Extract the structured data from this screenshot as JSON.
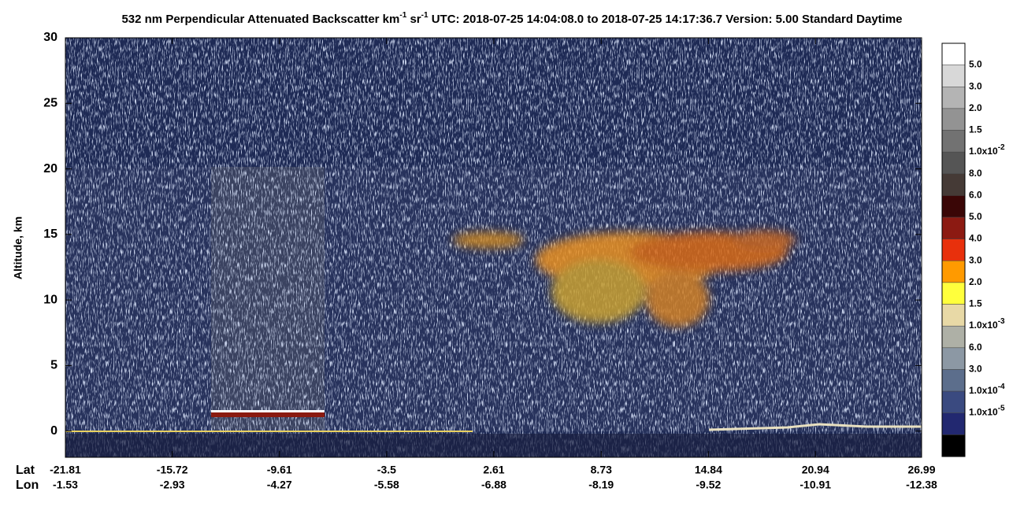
{
  "chart_data": {
    "type": "heatmap",
    "title_parts": [
      {
        "text": "532 nm Perpendicular Attenuated Backscatter km"
      },
      {
        "sup": "-1"
      },
      {
        "text": " sr"
      },
      {
        "sup": "-1"
      },
      {
        "text": "  UTC: 2018-07-25 14:04:08.0 to 2018-07-25 14:17:36.7  Version: 5.00 Standard Daytime"
      }
    ],
    "y_label": "Altitude, km",
    "ylim": [
      -2,
      30
    ],
    "yticks": [
      0,
      5,
      10,
      15,
      20,
      25,
      30
    ],
    "x_row_labels": [
      "Lat",
      "Lon"
    ],
    "xlim": [
      -21.81,
      26.99
    ],
    "lat": [
      -21.81,
      -15.72,
      -9.61,
      -3.5,
      2.61,
      8.73,
      14.84,
      20.94,
      26.99
    ],
    "lon": [
      -1.53,
      -2.93,
      -4.27,
      -5.58,
      -6.88,
      -8.19,
      -9.52,
      -10.91,
      -12.38
    ],
    "colorbar": {
      "labels": [
        {
          "text": "5.0"
        },
        {
          "text": "3.0"
        },
        {
          "text": "2.0"
        },
        {
          "text": "1.5"
        },
        {
          "text": "1.0x10",
          "sup": "-2"
        },
        {
          "text": "8.0"
        },
        {
          "text": "6.0"
        },
        {
          "text": "5.0"
        },
        {
          "text": "4.0"
        },
        {
          "text": "3.0"
        },
        {
          "text": "2.0"
        },
        {
          "text": "1.5"
        },
        {
          "text": "1.0x10",
          "sup": "-3"
        },
        {
          "text": "6.0"
        },
        {
          "text": "3.0"
        },
        {
          "text": "1.0x10",
          "sup": "-4"
        },
        {
          "text": "1.0x10",
          "sup": "-5"
        }
      ],
      "colors": [
        "#ffffff",
        "#d8d8d8",
        "#b4b4b4",
        "#939393",
        "#727272",
        "#555555",
        "#453a36",
        "#3a0606",
        "#8c1a12",
        "#e8300c",
        "#ff9a00",
        "#ffff3c",
        "#e8d9a6",
        "#aeb0a6",
        "#8c98a4",
        "#5c6e8c",
        "#3a4a80",
        "#222870",
        "#000000"
      ]
    }
  }
}
